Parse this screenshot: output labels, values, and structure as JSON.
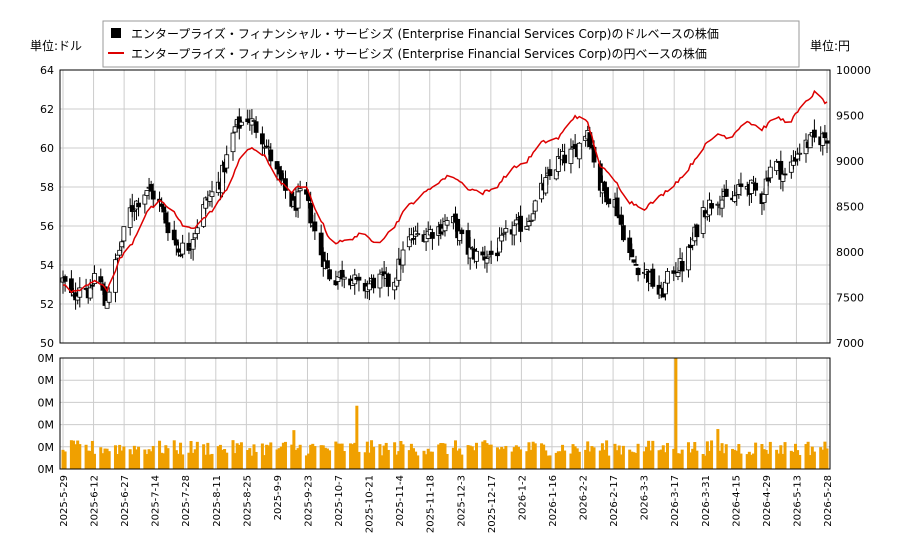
{
  "chart_data": {
    "type": "candlestick",
    "legend": {
      "placement": "top-center",
      "items": [
        {
          "label": "エンタープライズ・フィナンシャル・サービシズ (Enterprise Financial Services Corp)のドルベースの株価",
          "color": "#000000",
          "marker": "square"
        },
        {
          "label": "エンタープライズ・フィナンシャル・サービシズ (Enterprise Financial Services Corp)の円ベースの株価",
          "color": "#dd0000",
          "marker": "line"
        }
      ]
    },
    "left_unit": "単位:ドル",
    "right_unit": "単位:円",
    "price_axis": {
      "min": 50,
      "max": 64,
      "ticks": [
        "50",
        "52",
        "54",
        "56",
        "58",
        "60",
        "62",
        "64"
      ]
    },
    "yen_axis": {
      "min": 7000,
      "max": 10000,
      "ticks": [
        "7000",
        "7500",
        "8000",
        "8500",
        "9000",
        "9500",
        "10000"
      ]
    },
    "volume_axis": {
      "ticks": [
        "0M",
        "0M",
        "0M",
        "0M",
        "0M",
        "0M"
      ]
    },
    "x_dates": [
      "2025-5-29",
      "2025-6-12",
      "2025-6-27",
      "2025-7-14",
      "2025-7-28",
      "2025-8-11",
      "2025-8-25",
      "2025-9-9",
      "2025-9-23",
      "2025-10-7",
      "2025-10-21",
      "2025-11-4",
      "2025-11-18",
      "2025-12-3",
      "2025-12-17",
      "2026-1-2",
      "2026-1-16",
      "2026-2-2",
      "2026-2-17",
      "2026-3-3",
      "2026-3-17",
      "2026-3-31",
      "2026-4-15",
      "2026-4-29",
      "2026-5-13",
      "2026-5-28"
    ],
    "grid": true,
    "x_range_days": [
      0,
      364
    ],
    "price_anchors": [
      [
        0,
        53.2
      ],
      [
        5,
        52.2
      ],
      [
        9,
        53.3
      ],
      [
        13,
        52.4
      ],
      [
        16,
        54.1
      ],
      [
        20,
        52.0
      ],
      [
        25,
        54.0
      ],
      [
        32,
        56.8
      ],
      [
        40,
        57.9
      ],
      [
        45,
        57.4
      ],
      [
        50,
        56.0
      ],
      [
        55,
        54.8
      ],
      [
        60,
        55.0
      ],
      [
        68,
        57.2
      ],
      [
        75,
        58.3
      ],
      [
        82,
        61.0
      ],
      [
        88,
        61.6
      ],
      [
        95,
        60.6
      ],
      [
        103,
        58.4
      ],
      [
        110,
        57.0
      ],
      [
        115,
        57.8
      ],
      [
        121,
        55.2
      ],
      [
        128,
        53.2
      ],
      [
        135,
        53.7
      ],
      [
        142,
        52.7
      ],
      [
        150,
        53.3
      ],
      [
        157,
        53.0
      ],
      [
        164,
        55.2
      ],
      [
        170,
        55.6
      ],
      [
        178,
        55.8
      ],
      [
        185,
        56.4
      ],
      [
        192,
        54.8
      ],
      [
        199,
        54.4
      ],
      [
        206,
        54.6
      ],
      [
        213,
        55.8
      ],
      [
        221,
        56.2
      ],
      [
        228,
        57.8
      ],
      [
        236,
        59.3
      ],
      [
        244,
        59.8
      ],
      [
        250,
        61.0
      ],
      [
        256,
        58.0
      ],
      [
        263,
        57.2
      ],
      [
        271,
        54.2
      ],
      [
        278,
        53.6
      ],
      [
        285,
        52.4
      ],
      [
        290,
        53.8
      ],
      [
        296,
        54.0
      ],
      [
        305,
        56.8
      ],
      [
        312,
        57.5
      ],
      [
        318,
        57.2
      ],
      [
        325,
        58.2
      ],
      [
        333,
        57.5
      ],
      [
        338,
        59.5
      ],
      [
        344,
        58.5
      ],
      [
        350,
        59.8
      ],
      [
        357,
        60.4
      ],
      [
        364,
        60.6
      ]
    ],
    "yen_anchors": [
      [
        0,
        7640
      ],
      [
        5,
        7560
      ],
      [
        10,
        7620
      ],
      [
        15,
        7700
      ],
      [
        21,
        7580
      ],
      [
        27,
        7920
      ],
      [
        33,
        8100
      ],
      [
        40,
        8450
      ],
      [
        46,
        8550
      ],
      [
        52,
        8470
      ],
      [
        58,
        8250
      ],
      [
        63,
        8280
      ],
      [
        70,
        8430
      ],
      [
        78,
        8680
      ],
      [
        84,
        9020
      ],
      [
        90,
        9150
      ],
      [
        96,
        9050
      ],
      [
        102,
        8820
      ],
      [
        108,
        8650
      ],
      [
        115,
        8750
      ],
      [
        121,
        8440
      ],
      [
        128,
        8100
      ],
      [
        135,
        8120
      ],
      [
        142,
        8200
      ],
      [
        150,
        8100
      ],
      [
        157,
        8250
      ],
      [
        164,
        8500
      ],
      [
        170,
        8600
      ],
      [
        178,
        8760
      ],
      [
        185,
        8850
      ],
      [
        193,
        8700
      ],
      [
        200,
        8650
      ],
      [
        206,
        8700
      ],
      [
        213,
        8900
      ],
      [
        221,
        9000
      ],
      [
        228,
        9200
      ],
      [
        236,
        9250
      ],
      [
        244,
        9500
      ],
      [
        250,
        9420
      ],
      [
        256,
        8950
      ],
      [
        263,
        8780
      ],
      [
        270,
        8550
      ],
      [
        277,
        8480
      ],
      [
        284,
        8600
      ],
      [
        290,
        8720
      ],
      [
        296,
        8850
      ],
      [
        305,
        9150
      ],
      [
        312,
        9300
      ],
      [
        318,
        9250
      ],
      [
        325,
        9450
      ],
      [
        333,
        9350
      ],
      [
        340,
        9480
      ],
      [
        346,
        9420
      ],
      [
        353,
        9620
      ],
      [
        358,
        9750
      ],
      [
        364,
        9630
      ]
    ],
    "volume_spikes": [
      [
        110,
        0.35
      ],
      [
        140,
        0.57
      ],
      [
        292,
        1.0
      ],
      [
        312,
        0.36
      ],
      [
        324,
        0.38
      ]
    ]
  }
}
